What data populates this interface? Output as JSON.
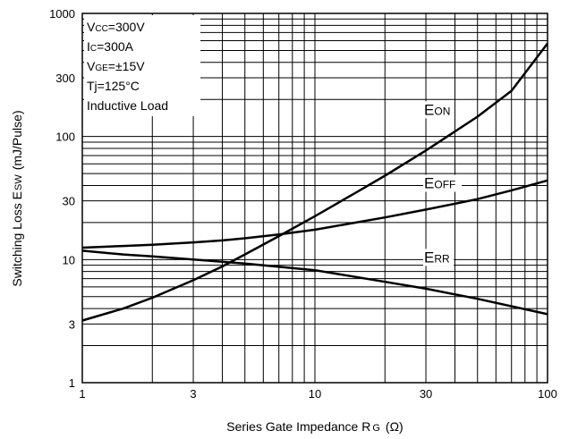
{
  "chart_data": {
    "type": "line",
    "x_scale": "log",
    "y_scale": "log",
    "xlim": [
      1,
      100
    ],
    "ylim": [
      1,
      1000
    ],
    "grid": true,
    "xlabel": "Series Gate Impedance R",
    "xlabel_sub": "G",
    "xlabel_unit": "(Ω)",
    "ylabel": "Switching Loss E",
    "ylabel_sub": "SW",
    "ylabel_unit": "(mJ/Pulse)",
    "x_ticks": [
      {
        "value": 1,
        "label": "1"
      },
      {
        "value": 3,
        "label": "3"
      },
      {
        "value": 10,
        "label": "10"
      },
      {
        "value": 30,
        "label": "30"
      },
      {
        "value": 100,
        "label": "100"
      }
    ],
    "y_ticks": [
      {
        "value": 1,
        "label": "1"
      },
      {
        "value": 3,
        "label": "3"
      },
      {
        "value": 10,
        "label": "10"
      },
      {
        "value": 30,
        "label": "30"
      },
      {
        "value": 100,
        "label": "100"
      },
      {
        "value": 300,
        "label": "300"
      },
      {
        "value": 1000,
        "label": "1000"
      }
    ],
    "conditions": [
      {
        "main": "V",
        "sub": "CC",
        "rest": "=300V"
      },
      {
        "main": "I",
        "sub": "C",
        "rest": "=300A"
      },
      {
        "main": "V",
        "sub": "GE",
        "rest": "=±15V"
      },
      {
        "main": "Tj=125°C",
        "sub": "",
        "rest": ""
      },
      {
        "main": "Inductive Load",
        "sub": "",
        "rest": ""
      }
    ],
    "series": [
      {
        "name": "EON",
        "label_main": "E",
        "label_sub": "ON",
        "label_at": [
          30,
          150
        ],
        "x": [
          1,
          1.5,
          2,
          3,
          4,
          5,
          7,
          10,
          15,
          20,
          30,
          50,
          70,
          100
        ],
        "y": [
          3.2,
          4.0,
          4.9,
          6.8,
          8.8,
          11,
          15.5,
          22.5,
          35,
          48,
          77,
          145,
          235,
          570
        ]
      },
      {
        "name": "EOFF",
        "label_main": "E",
        "label_sub": "OFF",
        "label_at": [
          30,
          38
        ],
        "x": [
          1,
          1.5,
          2,
          3,
          4,
          5,
          7,
          10,
          15,
          20,
          30,
          50,
          70,
          100
        ],
        "y": [
          12.5,
          12.9,
          13.2,
          13.8,
          14.3,
          14.9,
          16.0,
          17.5,
          20.0,
          22.0,
          25.5,
          31.0,
          36.5,
          44.0
        ]
      },
      {
        "name": "ERR",
        "label_main": "E",
        "label_sub": "RR",
        "label_at": [
          30,
          9.5
        ],
        "x": [
          1,
          1.5,
          2,
          3,
          5,
          10,
          20,
          30,
          50,
          100
        ],
        "y": [
          11.8,
          11.0,
          10.6,
          10.0,
          9.3,
          8.2,
          6.6,
          5.8,
          4.8,
          3.6
        ]
      }
    ]
  }
}
